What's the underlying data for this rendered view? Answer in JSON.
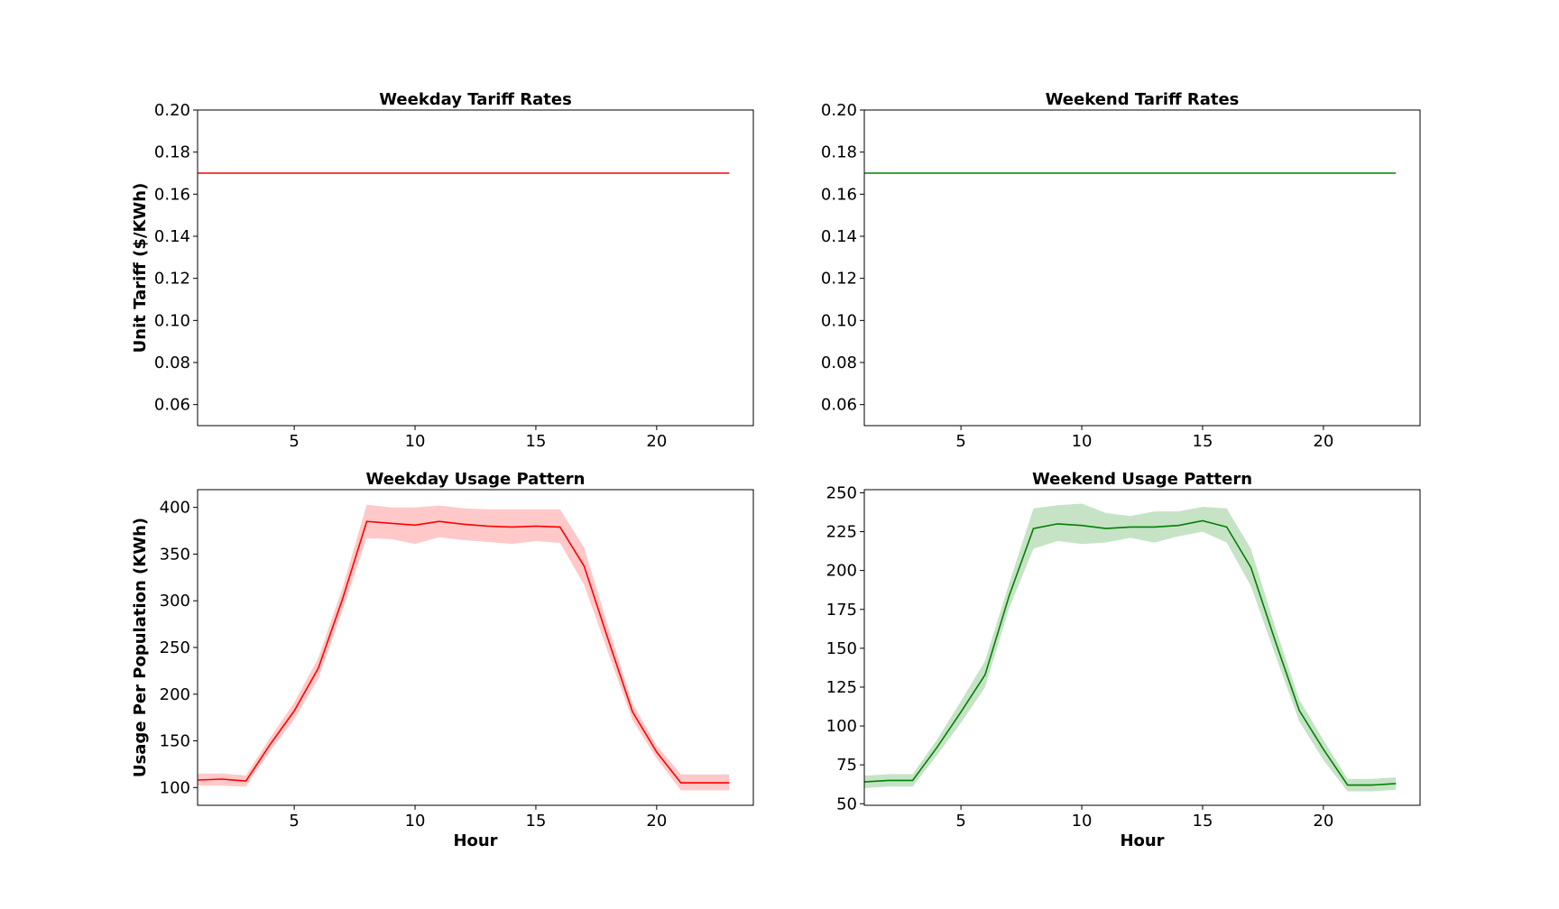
{
  "chart_data": [
    {
      "type": "line",
      "title": "Weekday Tariff Rates",
      "xlabel": "",
      "ylabel": "Unit Tariff ($/KWh)",
      "xlim": [
        1,
        24
      ],
      "ylim": [
        0.05,
        0.2
      ],
      "xticks": [
        5,
        10,
        15,
        20
      ],
      "yticks": [
        0.06,
        0.08,
        0.1,
        0.12,
        0.14,
        0.16,
        0.18,
        0.2
      ],
      "ytick_decimals": 2,
      "color": "#ff0000",
      "x": [
        1,
        2,
        3,
        4,
        5,
        6,
        7,
        8,
        9,
        10,
        11,
        12,
        13,
        14,
        15,
        16,
        17,
        18,
        19,
        20,
        21,
        22,
        23
      ],
      "series": [
        {
          "values": [
            0.17,
            0.17,
            0.17,
            0.17,
            0.17,
            0.17,
            0.17,
            0.17,
            0.17,
            0.17,
            0.17,
            0.17,
            0.17,
            0.17,
            0.17,
            0.17,
            0.17,
            0.17,
            0.17,
            0.17,
            0.17,
            0.17,
            0.17
          ]
        }
      ]
    },
    {
      "type": "line",
      "title": "Weekend Tariff Rates",
      "xlabel": "",
      "ylabel": "",
      "xlim": [
        1,
        24
      ],
      "ylim": [
        0.05,
        0.2
      ],
      "xticks": [
        5,
        10,
        15,
        20
      ],
      "yticks": [
        0.06,
        0.08,
        0.1,
        0.12,
        0.14,
        0.16,
        0.18,
        0.2
      ],
      "ytick_decimals": 2,
      "color": "#008000",
      "x": [
        1,
        2,
        3,
        4,
        5,
        6,
        7,
        8,
        9,
        10,
        11,
        12,
        13,
        14,
        15,
        16,
        17,
        18,
        19,
        20,
        21,
        22,
        23
      ],
      "series": [
        {
          "values": [
            0.17,
            0.17,
            0.17,
            0.17,
            0.17,
            0.17,
            0.17,
            0.17,
            0.17,
            0.17,
            0.17,
            0.17,
            0.17,
            0.17,
            0.17,
            0.17,
            0.17,
            0.17,
            0.17,
            0.17,
            0.17,
            0.17,
            0.17
          ]
        }
      ]
    },
    {
      "type": "line",
      "title": "Weekday Usage Pattern",
      "xlabel": "Hour",
      "ylabel": "Usage Per Population (KWh)",
      "xlim": [
        1,
        24
      ],
      "ylim": [
        81,
        419
      ],
      "xticks": [
        5,
        10,
        15,
        20
      ],
      "yticks": [
        100,
        150,
        200,
        250,
        300,
        350,
        400
      ],
      "ytick_decimals": 0,
      "color": "#ff0000",
      "band_color": "#ffc9c9",
      "x": [
        1,
        2,
        3,
        4,
        5,
        6,
        7,
        8,
        9,
        10,
        11,
        12,
        13,
        14,
        15,
        16,
        17,
        18,
        19,
        20,
        21,
        22,
        23
      ],
      "series": [
        {
          "values": [
            108,
            109,
            107,
            146,
            182,
            228,
            302,
            385,
            383,
            381,
            385,
            382,
            380,
            379,
            380,
            379,
            337,
            258,
            181,
            138,
            105,
            105,
            105
          ],
          "lower": [
            102,
            102,
            101,
            139,
            173,
            217,
            290,
            367,
            366,
            361,
            368,
            365,
            363,
            361,
            364,
            362,
            317,
            244,
            172,
            131,
            97,
            97,
            97
          ],
          "upper": [
            115,
            115,
            113,
            153,
            191,
            239,
            314,
            403,
            400,
            400,
            402,
            399,
            398,
            398,
            398,
            398,
            357,
            272,
            190,
            145,
            114,
            114,
            114
          ]
        }
      ]
    },
    {
      "type": "line",
      "title": "Weekend Usage Pattern",
      "xlabel": "Hour",
      "ylabel": "",
      "xlim": [
        1,
        24
      ],
      "ylim": [
        49,
        252
      ],
      "xticks": [
        5,
        10,
        15,
        20
      ],
      "yticks": [
        50,
        75,
        100,
        125,
        150,
        175,
        200,
        225,
        250
      ],
      "ytick_decimals": 0,
      "color": "#008000",
      "band_color": "#c6e3c6",
      "x": [
        1,
        2,
        3,
        4,
        5,
        6,
        7,
        8,
        9,
        10,
        11,
        12,
        13,
        14,
        15,
        16,
        17,
        18,
        19,
        20,
        21,
        22,
        23
      ],
      "series": [
        {
          "values": [
            64,
            65,
            65,
            86,
            109,
            133,
            184,
            227,
            230,
            229,
            227,
            228,
            228,
            229,
            232,
            228,
            202,
            155,
            110,
            85,
            62,
            62,
            63
          ],
          "lower": [
            60,
            61,
            61,
            81,
            102,
            125,
            176,
            214,
            219,
            217,
            218,
            221,
            218,
            222,
            225,
            218,
            190,
            146,
            103,
            78,
            58,
            58,
            59
          ],
          "upper": [
            68,
            69,
            69,
            91,
            116,
            142,
            192,
            240,
            242,
            243,
            237,
            235,
            238,
            238,
            241,
            240,
            214,
            164,
            117,
            91,
            66,
            66,
            67
          ]
        }
      ]
    }
  ]
}
